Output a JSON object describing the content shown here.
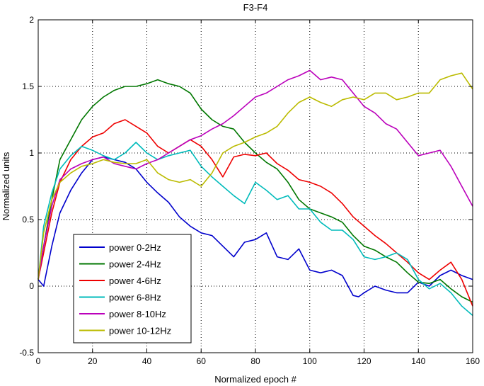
{
  "chart_data": {
    "type": "line",
    "title": "F3-F4",
    "xlabel": "Normalized epoch #",
    "ylabel": "Normalized units",
    "xlim": [
      0,
      160
    ],
    "ylim": [
      -0.5,
      2
    ],
    "xticks": [
      0,
      20,
      40,
      60,
      80,
      100,
      120,
      140,
      160
    ],
    "yticks": [
      -0.5,
      0,
      0.5,
      1,
      1.5,
      2
    ],
    "xtick_labels": [
      "0",
      "20",
      "40",
      "60",
      "80",
      "100",
      "120",
      "140",
      "160"
    ],
    "ytick_labels": [
      "-0.5",
      "0",
      "0.5",
      "1",
      "1.5",
      "2"
    ],
    "grid": true,
    "legend_position": "bottom-left",
    "series": [
      {
        "name": "power 0-2Hz",
        "color": "#0000cc",
        "x": [
          0,
          2,
          5,
          8,
          12,
          16,
          20,
          24,
          28,
          32,
          36,
          40,
          44,
          48,
          52,
          56,
          60,
          64,
          68,
          72,
          76,
          80,
          84,
          88,
          92,
          96,
          100,
          104,
          108,
          112,
          116,
          118,
          120,
          124,
          128,
          132,
          136,
          140,
          144,
          148,
          152,
          156,
          160
        ],
        "y": [
          0.05,
          0.0,
          0.3,
          0.55,
          0.72,
          0.85,
          0.95,
          0.97,
          0.95,
          0.93,
          0.88,
          0.78,
          0.7,
          0.63,
          0.52,
          0.45,
          0.4,
          0.38,
          0.3,
          0.22,
          0.33,
          0.35,
          0.4,
          0.22,
          0.2,
          0.28,
          0.12,
          0.1,
          0.12,
          0.08,
          -0.07,
          -0.08,
          -0.05,
          0.0,
          -0.03,
          -0.05,
          -0.05,
          0.03,
          0.0,
          0.08,
          0.12,
          0.08,
          0.05
        ]
      },
      {
        "name": "power 2-4Hz",
        "color": "#007700",
        "x": [
          0,
          2,
          5,
          8,
          12,
          16,
          20,
          24,
          28,
          32,
          36,
          40,
          44,
          48,
          52,
          56,
          60,
          64,
          68,
          72,
          76,
          80,
          84,
          88,
          92,
          96,
          100,
          104,
          108,
          112,
          116,
          120,
          124,
          128,
          132,
          136,
          140,
          144,
          148,
          152,
          156,
          160
        ],
        "y": [
          0.05,
          0.3,
          0.65,
          0.95,
          1.1,
          1.25,
          1.35,
          1.42,
          1.47,
          1.5,
          1.5,
          1.52,
          1.55,
          1.52,
          1.5,
          1.45,
          1.33,
          1.25,
          1.2,
          1.18,
          1.08,
          1.0,
          0.93,
          0.88,
          0.78,
          0.65,
          0.58,
          0.55,
          0.52,
          0.48,
          0.38,
          0.3,
          0.27,
          0.22,
          0.18,
          0.1,
          0.03,
          0.02,
          0.05,
          -0.02,
          -0.08,
          -0.12
        ]
      },
      {
        "name": "power 4-6Hz",
        "color": "#ee0000",
        "x": [
          0,
          2,
          5,
          8,
          12,
          16,
          20,
          24,
          28,
          32,
          36,
          40,
          44,
          48,
          52,
          56,
          60,
          64,
          68,
          72,
          76,
          80,
          84,
          88,
          92,
          96,
          100,
          104,
          108,
          112,
          116,
          120,
          124,
          128,
          132,
          136,
          140,
          144,
          148,
          152,
          156,
          160
        ],
        "y": [
          0.05,
          0.25,
          0.55,
          0.78,
          0.95,
          1.05,
          1.12,
          1.15,
          1.22,
          1.25,
          1.2,
          1.15,
          1.05,
          1.0,
          1.05,
          1.1,
          1.05,
          0.95,
          0.82,
          0.97,
          0.99,
          0.98,
          1.0,
          0.92,
          0.87,
          0.8,
          0.78,
          0.75,
          0.7,
          0.62,
          0.52,
          0.45,
          0.38,
          0.32,
          0.25,
          0.18,
          0.1,
          0.05,
          0.12,
          0.18,
          0.05,
          -0.15
        ]
      },
      {
        "name": "power 6-8Hz",
        "color": "#00bbbb",
        "x": [
          0,
          2,
          5,
          8,
          12,
          16,
          20,
          24,
          28,
          32,
          36,
          40,
          44,
          48,
          52,
          56,
          60,
          64,
          68,
          72,
          76,
          80,
          84,
          88,
          92,
          96,
          100,
          104,
          108,
          112,
          116,
          120,
          124,
          128,
          132,
          136,
          140,
          144,
          148,
          152,
          156,
          160
        ],
        "y": [
          0.05,
          0.45,
          0.7,
          0.88,
          0.98,
          1.05,
          1.02,
          0.98,
          0.95,
          1.0,
          1.08,
          1.0,
          0.95,
          0.98,
          1.0,
          1.02,
          0.9,
          0.82,
          0.75,
          0.68,
          0.62,
          0.78,
          0.72,
          0.65,
          0.68,
          0.58,
          0.58,
          0.48,
          0.42,
          0.42,
          0.35,
          0.22,
          0.2,
          0.22,
          0.25,
          0.2,
          0.05,
          -0.02,
          0.02,
          -0.05,
          -0.15,
          -0.22
        ]
      },
      {
        "name": "power 8-10Hz",
        "color": "#bb00bb",
        "x": [
          0,
          2,
          5,
          8,
          12,
          16,
          20,
          24,
          28,
          32,
          36,
          40,
          44,
          48,
          52,
          56,
          60,
          64,
          68,
          72,
          76,
          80,
          84,
          88,
          92,
          96,
          100,
          104,
          108,
          112,
          116,
          120,
          124,
          128,
          132,
          136,
          140,
          144,
          148,
          152,
          156,
          160
        ],
        "y": [
          0.05,
          0.3,
          0.6,
          0.8,
          0.88,
          0.92,
          0.95,
          0.97,
          0.92,
          0.9,
          0.88,
          0.92,
          0.95,
          1.0,
          1.05,
          1.1,
          1.13,
          1.18,
          1.22,
          1.28,
          1.35,
          1.42,
          1.45,
          1.5,
          1.55,
          1.58,
          1.62,
          1.55,
          1.57,
          1.55,
          1.45,
          1.35,
          1.3,
          1.22,
          1.18,
          1.08,
          0.98,
          1.0,
          1.02,
          0.9,
          0.75,
          0.6
        ]
      },
      {
        "name": "power 10-12Hz",
        "color": "#bbbb00",
        "x": [
          0,
          2,
          5,
          8,
          12,
          16,
          20,
          24,
          28,
          32,
          36,
          40,
          44,
          48,
          52,
          56,
          60,
          64,
          68,
          72,
          76,
          80,
          84,
          88,
          92,
          96,
          100,
          104,
          108,
          112,
          116,
          120,
          124,
          128,
          132,
          136,
          140,
          144,
          148,
          152,
          156,
          160
        ],
        "y": [
          0.05,
          0.4,
          0.65,
          0.78,
          0.85,
          0.9,
          0.92,
          0.95,
          0.93,
          0.92,
          0.92,
          0.95,
          0.85,
          0.8,
          0.78,
          0.8,
          0.75,
          0.85,
          1.0,
          1.05,
          1.08,
          1.12,
          1.15,
          1.2,
          1.3,
          1.38,
          1.42,
          1.38,
          1.35,
          1.4,
          1.42,
          1.4,
          1.45,
          1.45,
          1.4,
          1.42,
          1.45,
          1.45,
          1.55,
          1.58,
          1.6,
          1.48
        ]
      }
    ]
  }
}
